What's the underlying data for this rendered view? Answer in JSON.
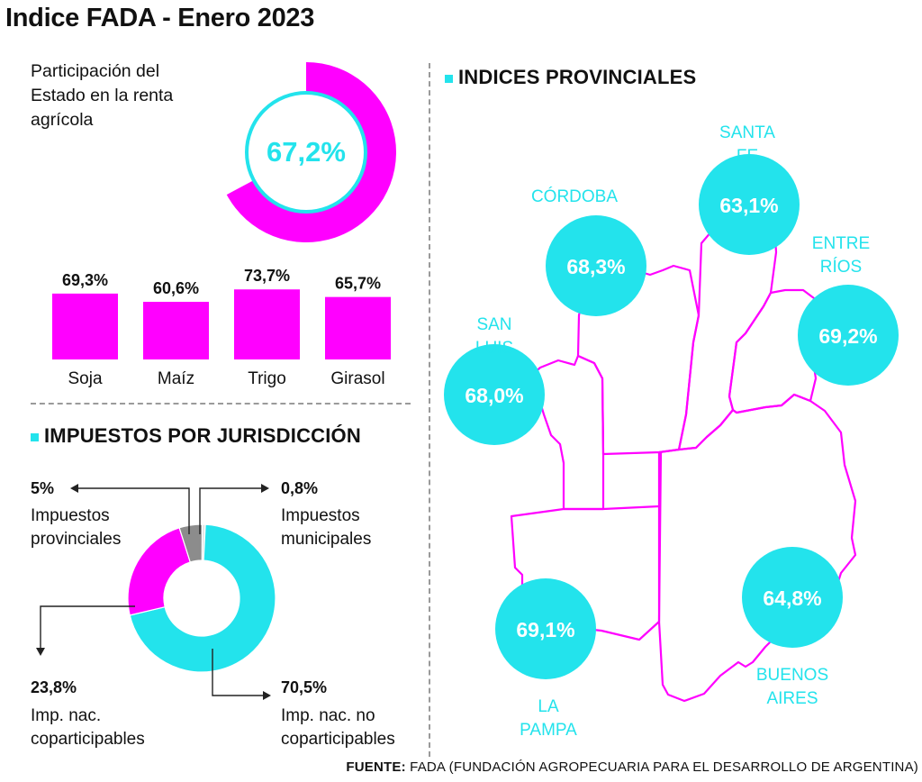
{
  "title": "Indice FADA - Enero 2023",
  "share": {
    "label": "Participación del Estado en la renta agrícola",
    "value_text": "67,2%",
    "value": 67.2
  },
  "crops_chart": {
    "type": "bar",
    "categories": [
      "Soja",
      "Maíz",
      "Trigo",
      "Girasol"
    ],
    "values": [
      69.3,
      60.6,
      73.7,
      65.7
    ],
    "value_labels": [
      "69,3%",
      "60,6%",
      "73,7%",
      "65,7%"
    ],
    "color": "#ff00ff"
  },
  "taxes": {
    "heading": "IMPUESTOS POR JURISDICCIÓN",
    "provincial": {
      "pct": "5%",
      "label": "Impuestos provinciales"
    },
    "municipal": {
      "pct": "0,8%",
      "label": "Impuestos municipales"
    },
    "coparticipables": {
      "pct": "23,8%",
      "label": "Imp. nac. coparticipables"
    },
    "no_coparticipables": {
      "pct": "70,5%",
      "label": "Imp. nac. no coparticipables"
    }
  },
  "chart_data": [
    {
      "type": "pie",
      "labels": [
        "Participación del Estado en la renta agrícola"
      ],
      "values": [
        67.2
      ],
      "colors": [
        "#ff00ff"
      ]
    },
    {
      "type": "bar",
      "categories": [
        "Soja",
        "Maíz",
        "Trigo",
        "Girasol"
      ],
      "values": [
        69.3,
        60.6,
        73.7,
        65.7
      ]
    },
    {
      "type": "pie",
      "labels": [
        "Imp. nac. no coparticipables",
        "Imp. nac. coparticipables",
        "Impuestos provinciales",
        "Impuestos municipales"
      ],
      "values": [
        70.5,
        23.8,
        5,
        0.8
      ],
      "colors": [
        "#23e3ec",
        "#ff00ff",
        "#8c8c8c",
        "#e6e6e6"
      ]
    }
  ],
  "provinces": {
    "heading": "INDICES PROVINCIALES",
    "items": [
      {
        "name": "CÓRDOBA",
        "value": "68,3%"
      },
      {
        "name": "SANTA FE",
        "value": "63,1%"
      },
      {
        "name": "ENTRE RÍOS",
        "value": "69,2%"
      },
      {
        "name": "SAN LUIS",
        "value": "68,0%"
      },
      {
        "name": "LA PAMPA",
        "value": "69,1%"
      },
      {
        "name": "BUENOS AIRES",
        "value": "64,8%"
      }
    ]
  },
  "colors": {
    "magenta": "#ff00ff",
    "cyan": "#23e3ec",
    "gray": "#8c8c8c"
  },
  "source": {
    "label": "FUENTE:",
    "text": " FADA (FUNDACIÓN AGROPECUARIA PARA EL DESARROLLO DE ARGENTINA)"
  }
}
